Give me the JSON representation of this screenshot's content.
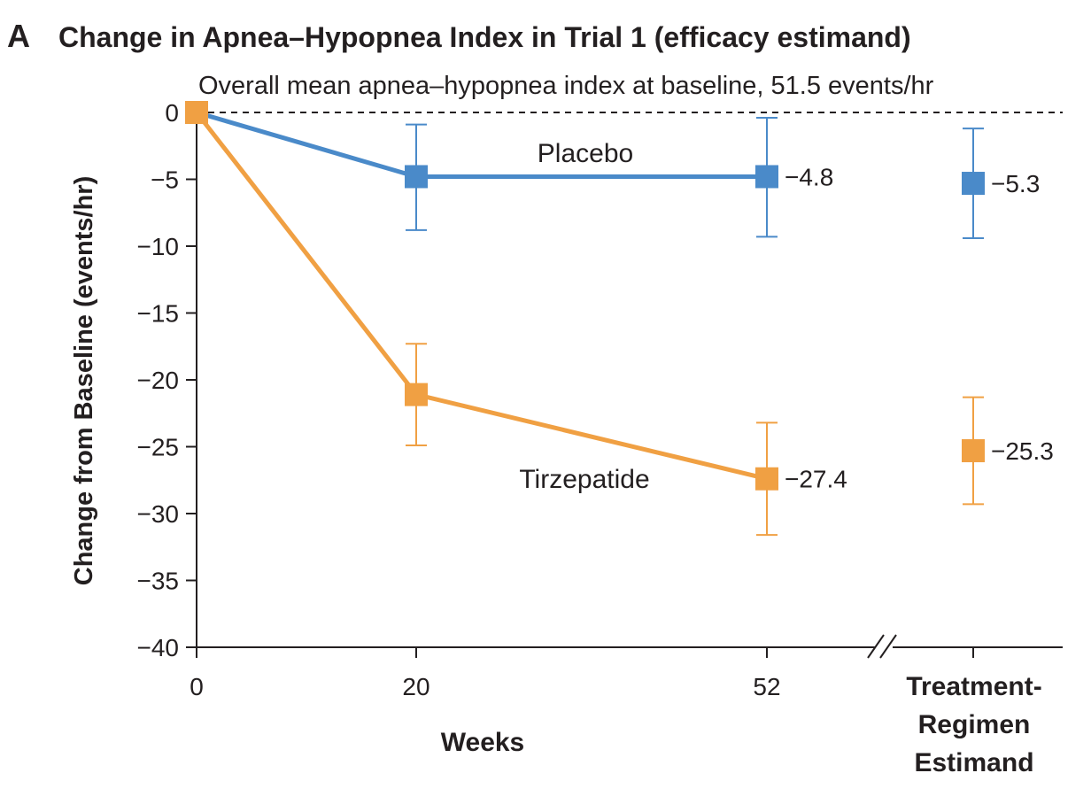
{
  "figure": {
    "panel_letter": "A",
    "title": "Change in Apnea–Hypopnea Index in Trial 1 (efficacy estimand)",
    "baseline_note": "Overall mean apnea–hypopnea index at baseline, 51.5 events/hr"
  },
  "chart_data": {
    "type": "line",
    "title": "Change in Apnea–Hypopnea Index in Trial 1 (efficacy estimand)",
    "xlabel": "Weeks",
    "ylabel": "Change from Baseline (events/hr)",
    "ylim": [
      -40,
      0
    ],
    "yticks": [
      0,
      -5,
      -10,
      -15,
      -20,
      -25,
      -30,
      -35,
      -40
    ],
    "ytick_labels": [
      "0",
      "−5",
      "−10",
      "−15",
      "−20",
      "−25",
      "−30",
      "−35",
      "−40"
    ],
    "x": [
      0,
      20,
      52
    ],
    "xtick_labels": [
      "0",
      "20",
      "52"
    ],
    "extra_category_label": [
      "Treatment-",
      "Regimen",
      "Estimand"
    ],
    "reference_line": 0,
    "series": [
      {
        "name": "Placebo",
        "color": "#4a8ac9",
        "values": [
          0,
          -4.8,
          -4.8
        ],
        "ci_low": [
          null,
          -8.8,
          -9.3
        ],
        "ci_high": [
          null,
          -0.9,
          -0.4
        ],
        "end_label": "−4.8",
        "regimen_value": -5.3,
        "regimen_ci": [
          -9.4,
          -1.2
        ],
        "regimen_label": "−5.3"
      },
      {
        "name": "Tirzepatide",
        "color": "#f0a043",
        "values": [
          0,
          -21.1,
          -27.4
        ],
        "ci_low": [
          null,
          -24.9,
          -31.6
        ],
        "ci_high": [
          null,
          -17.3,
          -23.2
        ],
        "end_label": "−27.4",
        "regimen_value": -25.3,
        "regimen_ci": [
          -29.3,
          -21.3
        ],
        "regimen_label": "−25.3"
      }
    ]
  }
}
